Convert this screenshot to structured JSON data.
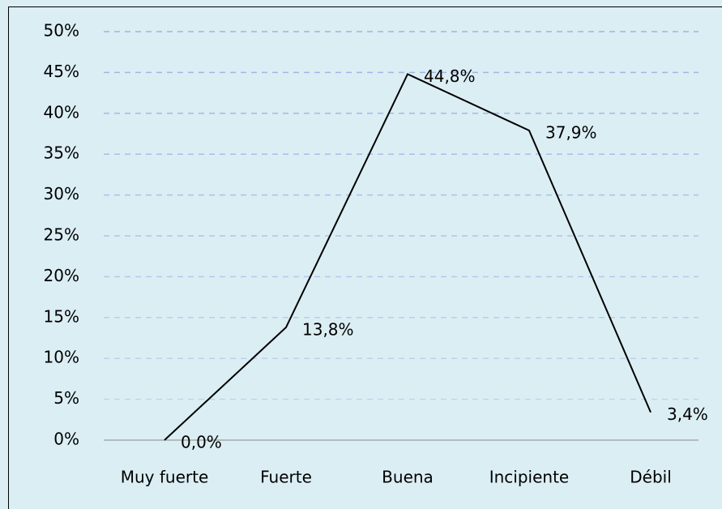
{
  "chart_data": {
    "type": "line",
    "categories": [
      "Muy fuerte",
      "Fuerte",
      "Buena",
      "Incipiente",
      "Débil"
    ],
    "values": [
      0,
      13.8,
      44.8,
      37.9,
      3.4
    ],
    "value_labels": [
      "0,0%",
      "13,8%",
      "44,8%",
      "37,9%",
      "3,4%"
    ],
    "color": "#000000",
    "ylim": [
      0,
      50
    ],
    "yticks": [
      {
        "value": 0,
        "label": "0%"
      },
      {
        "value": 5,
        "label": "5%"
      },
      {
        "value": 10,
        "label": "10%"
      },
      {
        "value": 15,
        "label": "15%"
      },
      {
        "value": 20,
        "label": "20%"
      },
      {
        "value": 25,
        "label": "25%"
      },
      {
        "value": 30,
        "label": "30%"
      },
      {
        "value": 35,
        "label": "35%"
      },
      {
        "value": 40,
        "label": "40%"
      },
      {
        "value": 45,
        "label": "45%"
      },
      {
        "value": 50,
        "label": "50%"
      }
    ],
    "grid": true
  }
}
